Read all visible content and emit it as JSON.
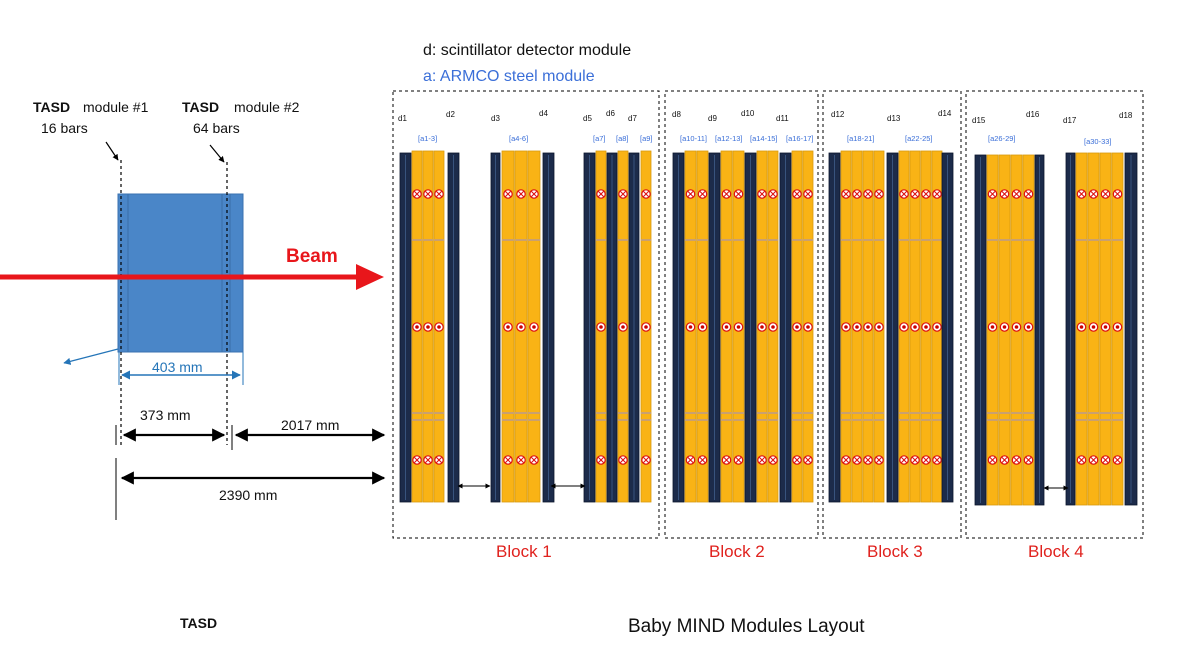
{
  "legend": {
    "d_line": "d: scintillator detector module",
    "a_line": "a: ARMCO steel module"
  },
  "tasd": {
    "module1_tag": "TASD",
    "module1_label": "module #1",
    "module1_bars": "16 bars",
    "module2_tag": "TASD",
    "module2_label": "module #2",
    "module2_bars": "64 bars",
    "footer": "TASD"
  },
  "beam_label": "Beam",
  "dimensions": {
    "width": "403 mm",
    "gap": "373 mm",
    "to_babymind": "2017 mm",
    "total": "2390 mm"
  },
  "blocks": [
    {
      "label": "Block 1",
      "detectors": [
        "d1",
        "d2",
        "d3",
        "d4",
        "d5",
        "d6",
        "d7"
      ],
      "steel": [
        "[a1-3]",
        "[a4-6]",
        "[a7]",
        "[a8]",
        "[a9]"
      ]
    },
    {
      "label": "Block 2",
      "detectors": [
        "d8",
        "d9",
        "d10",
        "d11"
      ],
      "steel": [
        "[a10-11]",
        "[a12-13]",
        "[a14-15]",
        "[a16-17]"
      ]
    },
    {
      "label": "Block 3",
      "detectors": [
        "d12",
        "d13",
        "d14"
      ],
      "steel": [
        "[a18-21]",
        "[a22-25]"
      ]
    },
    {
      "label": "Block 4",
      "detectors": [
        "d15",
        "d16",
        "d17",
        "d18"
      ],
      "steel": [
        "[a26-29]",
        "[a30-33]"
      ]
    }
  ],
  "title": "Baby MIND Modules Layout",
  "colors": {
    "steel": "#f9b315",
    "scintillator": "#1c2b4a",
    "beam": "#e8161b",
    "tasd": "#4a86c8",
    "dimension": "#2575b8",
    "label_blue": "#3b6fd8",
    "block_red": "#e0221e"
  }
}
